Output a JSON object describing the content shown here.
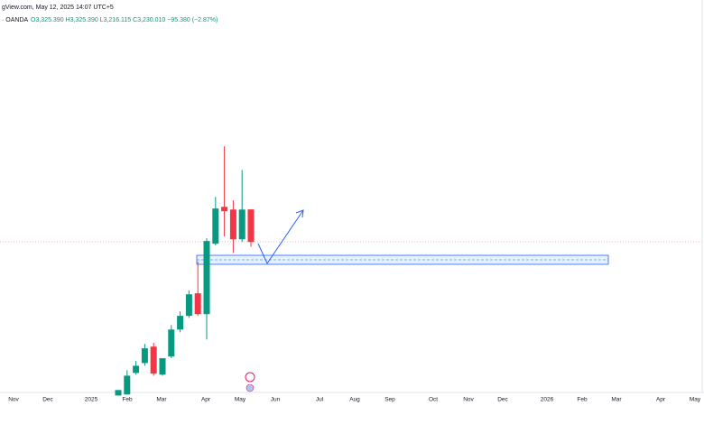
{
  "header": {
    "source": "gView.com, May 12, 2025 14:07 UTC+5",
    "symbol": "· OANDA",
    "ohlc": "O3,325.390  H3,325.390  L3,216.115  C3,230.010  −95.380 (−2.87%)"
  },
  "chart_data": {
    "type": "candlestick",
    "categories": [
      null,
      null,
      null,
      null,
      null,
      null,
      null,
      null,
      null,
      null,
      null,
      null,
      null,
      null,
      null,
      null
    ],
    "open": [
      2781,
      2784,
      2847,
      2876,
      2924,
      2842,
      2895,
      2974,
      3014,
      3080,
      3019,
      3225,
      3333,
      3325,
      3238,
      3325.39
    ],
    "high": [
      2797,
      2855,
      2882,
      2932,
      2935,
      2890,
      2987,
      3027,
      3088,
      3172,
      3241,
      3362,
      3510,
      3352,
      3441,
      3325.39
    ],
    "low": [
      2781,
      2784,
      2842,
      2868,
      2839,
      2839,
      2890,
      2966,
      3008,
      3014,
      2945,
      3220,
      3246,
      3198,
      3230,
      3216.115
    ],
    "close": [
      2797,
      2839,
      2868,
      2919,
      2845,
      2890,
      2974,
      3014,
      3077,
      3019,
      3233,
      3328,
      3320,
      3238,
      3325,
      3230.01
    ],
    "up_color": "#089981",
    "down_color": "#f23645",
    "ylim": [
      2790,
      3938
    ],
    "xlabels": [
      "Nov",
      "Dec",
      "2025",
      "Feb",
      "Mar",
      "Apr",
      "May",
      "Jun",
      "Jul",
      "Aug",
      "Sep",
      "Oct",
      "Nov",
      "Dec",
      "2026",
      "Feb",
      "Mar",
      "Apr",
      "May"
    ]
  }
}
